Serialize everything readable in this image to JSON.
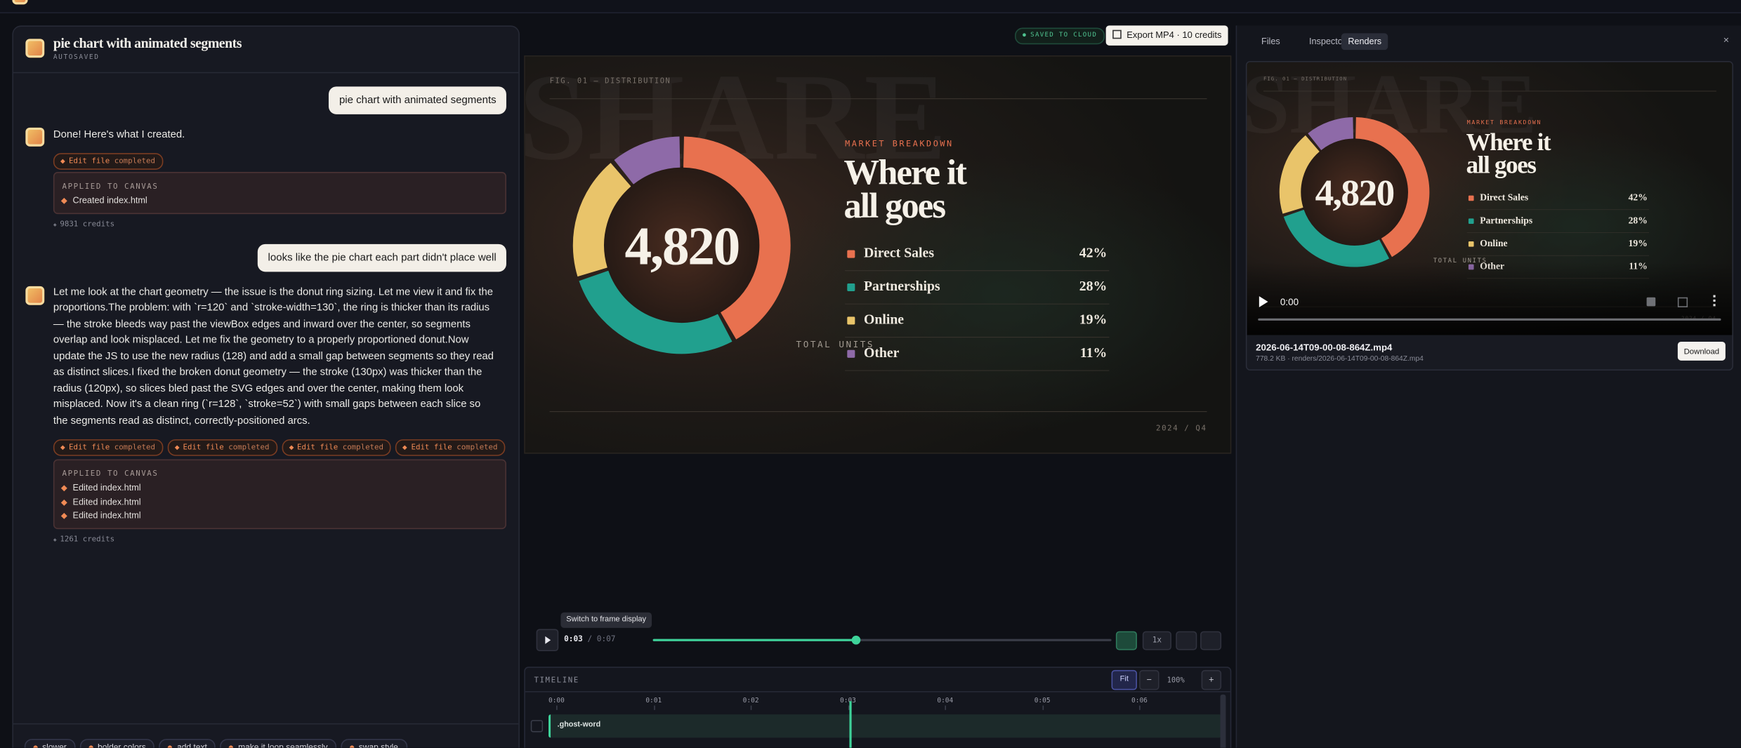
{
  "project": {
    "title": "pie chart with animated segments",
    "status": "AUTOSAVED"
  },
  "messages": [
    {
      "text": "pie chart with animated segments"
    },
    {
      "text": "Done! Here's what I created.",
      "tools": [
        {
          "action": "Edit file",
          "status": "completed"
        }
      ],
      "applied": {
        "heading": "APPLIED TO CANVAS",
        "items": [
          "Created index.html"
        ]
      },
      "credits": "9831 credits"
    },
    {
      "text": "looks like the pie chart each part didn't place well"
    },
    {
      "text": "Let me look at the chart geometry — the issue is the donut ring sizing. Let me view it and fix the proportions.The problem: with `r=120` and `stroke-width=130`, the ring is thicker than its radius — the stroke bleeds way past the viewBox edges and inward over the center, so segments overlap and look misplaced. Let me fix the geometry to a properly proportioned donut.Now update the JS to use the new radius (128) and add a small gap between segments so they read as distinct slices.I fixed the broken donut geometry — the stroke (130px) was thicker than the radius (120px), so slices bled past the SVG edges and over the center, making them look misplaced. Now it's a clean ring (`r=128`, `stroke=52`) with small gaps between each slice so the segments read as distinct, correctly-positioned arcs.",
      "tools": [
        {
          "action": "Edit file",
          "status": "completed"
        },
        {
          "action": "Edit file",
          "status": "completed"
        },
        {
          "action": "Edit file",
          "status": "completed"
        },
        {
          "action": "Edit file",
          "status": "completed"
        }
      ],
      "applied": {
        "heading": "APPLIED TO CANVAS",
        "items": [
          "Edited index.html",
          "Edited index.html",
          "Edited index.html"
        ]
      },
      "credits": "1261 credits"
    }
  ],
  "suggestions": [
    "slower",
    "bolder colors",
    "add text",
    "make it loop seamlessly",
    "swap style"
  ],
  "toolbar": {
    "saved": "SAVED TO CLOUD",
    "export": "Export MP4 · 10 credits"
  },
  "canvas": {
    "ghost_word": "SHARE",
    "figure": "FIG. 01 — DISTRIBUTION",
    "total": "4,820",
    "total_label": "TOTAL UNITS",
    "kicker": "MARKET BREAKDOWN",
    "heading": [
      "Where it",
      "all goes"
    ],
    "segments": [
      {
        "name": "Direct Sales",
        "color": "#e8714f",
        "value": 42,
        "label": "42%"
      },
      {
        "name": "Partnerships",
        "color": "#21a08e",
        "value": 28,
        "label": "28%"
      },
      {
        "name": "Online",
        "color": "#e9c46a",
        "value": 19,
        "label": "19%"
      },
      {
        "name": "Other",
        "color": "#8e6aa8",
        "value": 11,
        "label": "11%"
      }
    ],
    "footer": "2024 / Q4"
  },
  "tooltip": "Switch to frame display",
  "player": {
    "current": "0:03",
    "duration": "/ 0:07",
    "speed": "1x"
  },
  "timeline": {
    "title": "TIMELINE",
    "fit": "Fit",
    "zoom_out": "−",
    "zoom": "100%",
    "zoom_in": "+",
    "ticks": [
      "0:00",
      "0:01",
      "0:02",
      "0:03",
      "0:04",
      "0:05",
      "0:06"
    ],
    "tracks": [
      ".ghost-word"
    ]
  },
  "panel": {
    "tabs": [
      "Files",
      "Inspector",
      "Renders"
    ],
    "close": "×"
  },
  "render": {
    "time": "0:00",
    "file": "2026-06-14T09-00-08-864Z.mp4",
    "meta": "778.2 KB · renders/2026-06-14T09-00-08-864Z.mp4",
    "download": "Download"
  }
}
